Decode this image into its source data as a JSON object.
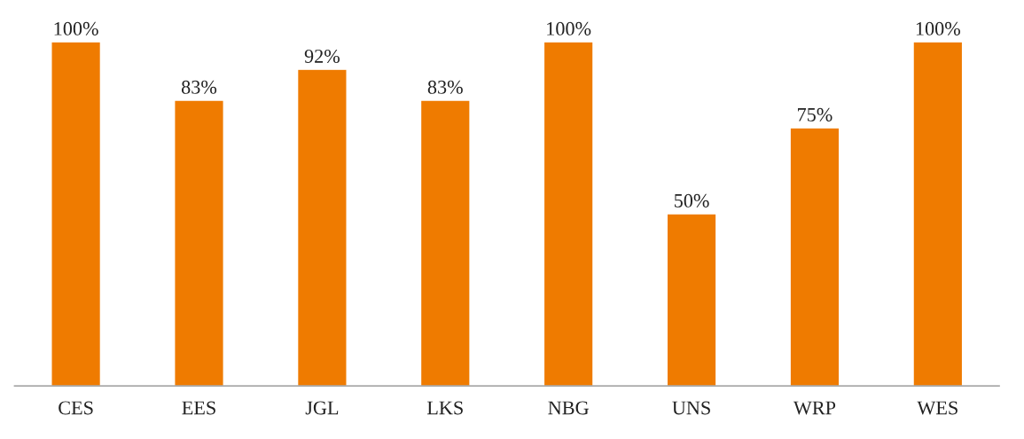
{
  "chart_data": {
    "type": "bar",
    "categories": [
      "CES",
      "EES",
      "JGL",
      "LKS",
      "NBG",
      "UNS",
      "WRP",
      "WES"
    ],
    "values": [
      100,
      83,
      92,
      83,
      100,
      50,
      75,
      100
    ],
    "value_labels": [
      "100%",
      "83%",
      "92%",
      "83%",
      "100%",
      "50%",
      "75%",
      "100%"
    ],
    "color": "#ef7b00",
    "tick_labels": "x",
    "grid": false
  }
}
